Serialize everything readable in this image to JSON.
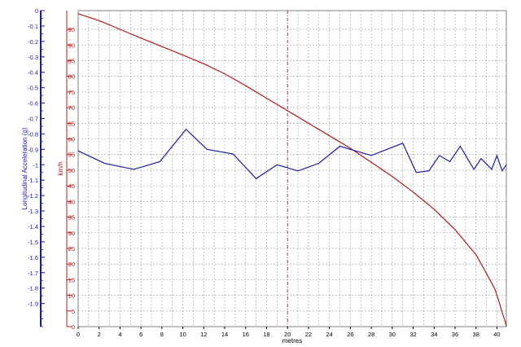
{
  "chart_data": {
    "type": "line",
    "xlabel": "metres",
    "y_left_label": "Longitudinal Acceleration (g)",
    "y_right_label": "km/h",
    "x_ticks": [
      0,
      2,
      4,
      6,
      8,
      10,
      12,
      14,
      16,
      18,
      20,
      22,
      24,
      26,
      28,
      30,
      32,
      34,
      36,
      38,
      40
    ],
    "x_tick_labels": [
      "0",
      "2",
      "4",
      "6",
      "8",
      "10",
      "12",
      "14",
      "16",
      "18",
      "20",
      "22",
      "24",
      "26",
      "28",
      "30",
      "32",
      "34",
      "36",
      "38",
      "40"
    ],
    "xlim": [
      0,
      40.9
    ],
    "y_left_ticks": [
      0,
      -0.1,
      -0.2,
      -0.3,
      -0.4,
      -0.5,
      -0.6,
      -0.7,
      -0.8,
      -0.9,
      -1,
      -1.1,
      -1.2,
      -1.3,
      -1.4,
      -1.5,
      -1.6,
      -1.7,
      -1.8,
      -1.9
    ],
    "y_left_tick_labels": [
      "0",
      "-0.1",
      "-0.2",
      "-0.3",
      "-0.4",
      "-0.5",
      "-0.6",
      "-0.7",
      "-0.8",
      "-0.9",
      "-1",
      "-1.1",
      "-1.2",
      "-1.3",
      "-1.4",
      "-1.5",
      "-1.6",
      "-1.7",
      "-1.8",
      "-1.9"
    ],
    "y_left_lim": [
      -2.05,
      0
    ],
    "y_right_ticks": [
      0,
      5,
      10,
      15,
      20,
      25,
      30,
      35,
      40,
      45,
      50,
      55,
      60,
      65,
      70,
      75,
      80,
      85,
      90,
      95
    ],
    "y_right_tick_labels": [
      "0",
      "5",
      "10",
      "15",
      "20",
      "25",
      "30",
      "35",
      "40",
      "45",
      "50",
      "55",
      "60",
      "65",
      "70",
      "75",
      "80",
      "85",
      "90",
      "95"
    ],
    "y_right_lim": [
      0,
      101
    ],
    "grid": true,
    "cursor_x": 20,
    "colors": {
      "acceleration": "#1a1aa8",
      "speed": "#b01c1c",
      "left_axis": "#1a1aa8",
      "right_axis": "#b01c1c",
      "grid": "#9a9a9a",
      "cursor": "#c03030"
    },
    "series": [
      {
        "axis": "left",
        "color": "#1a1aa8",
        "x": [
          0,
          2.5,
          5.3,
          7.8,
          10.3,
          12.3,
          14.8,
          17,
          19,
          21,
          23,
          25,
          28,
          31,
          32.3,
          33.5,
          34.5,
          35.5,
          36.5,
          37.8,
          38.5,
          39.5,
          40,
          40.5,
          40.9
        ],
        "y": [
          -0.91,
          -0.99,
          -1.03,
          -0.98,
          -0.77,
          -0.9,
          -0.93,
          -1.09,
          -1.0,
          -1.04,
          -0.99,
          -0.88,
          -0.94,
          -0.86,
          -1.05,
          -1.04,
          -0.94,
          -0.98,
          -0.88,
          -1.03,
          -0.96,
          -1.03,
          -0.94,
          -1.04,
          -1.0
        ]
      },
      {
        "axis": "right",
        "color": "#b01c1c",
        "x": [
          0,
          2,
          4,
          6,
          8,
          10,
          12,
          14,
          16,
          18,
          20,
          22,
          24,
          26,
          28,
          30,
          32,
          34,
          36,
          37,
          38,
          39,
          39.8,
          40.2,
          40.5,
          40.8,
          40.9
        ],
        "y": [
          100,
          97.8,
          95,
          92.2,
          89.5,
          86.8,
          84,
          80.8,
          77,
          73,
          69,
          65,
          61,
          57,
          52.5,
          48,
          43,
          37.5,
          31,
          27,
          23,
          17,
          12,
          8,
          4.5,
          1.5,
          0
        ]
      }
    ]
  }
}
